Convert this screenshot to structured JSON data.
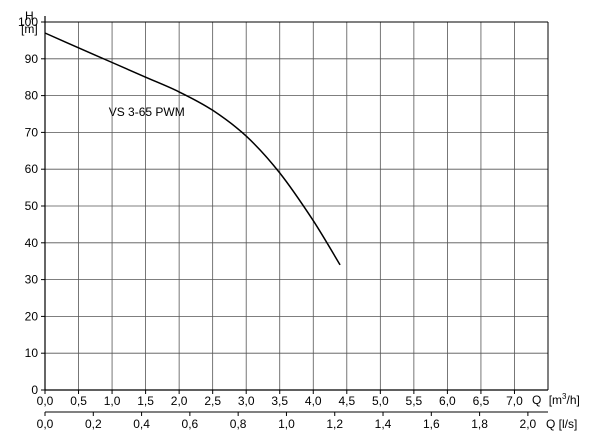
{
  "chart_data": {
    "type": "line",
    "title": "",
    "y_axis": {
      "symbol": "H",
      "unit": "[m]",
      "range": [
        0,
        100
      ],
      "ticks": [
        0,
        10,
        20,
        30,
        40,
        50,
        60,
        70,
        80,
        90,
        100
      ]
    },
    "x_axis_primary": {
      "range": [
        0,
        7.5
      ],
      "ticks": [
        "0,0",
        "0,5",
        "1,0",
        "1,5",
        "2,0",
        "2,5",
        "3,0",
        "3,5",
        "4,0",
        "4,5",
        "5,0",
        "5,5",
        "6,0",
        "6,5",
        "7,0"
      ],
      "symbol": "Q",
      "unit_base": "[m",
      "unit_sup": "3",
      "unit_rest": "/h]"
    },
    "x_axis_secondary": {
      "range": [
        0,
        2.0833
      ],
      "ticks": [
        "0,0",
        "0,2",
        "0,4",
        "0,6",
        "0,8",
        "1,0",
        "1,2",
        "1,4",
        "1,6",
        "1,8",
        "2,0"
      ],
      "tick_values": [
        0,
        0.2,
        0.4,
        0.6,
        0.8,
        1.0,
        1.2,
        1.4,
        1.6,
        1.8,
        2.0
      ],
      "label": "Q [l/s]"
    },
    "grid": true,
    "series": [
      {
        "name": "VS 3-65 PWM",
        "x": [
          0,
          0.5,
          1.0,
          1.5,
          2.0,
          2.5,
          3.0,
          3.5,
          4.0,
          4.4
        ],
        "y": [
          97,
          93,
          89,
          85,
          81,
          76,
          69,
          59,
          46,
          34
        ]
      }
    ]
  }
}
